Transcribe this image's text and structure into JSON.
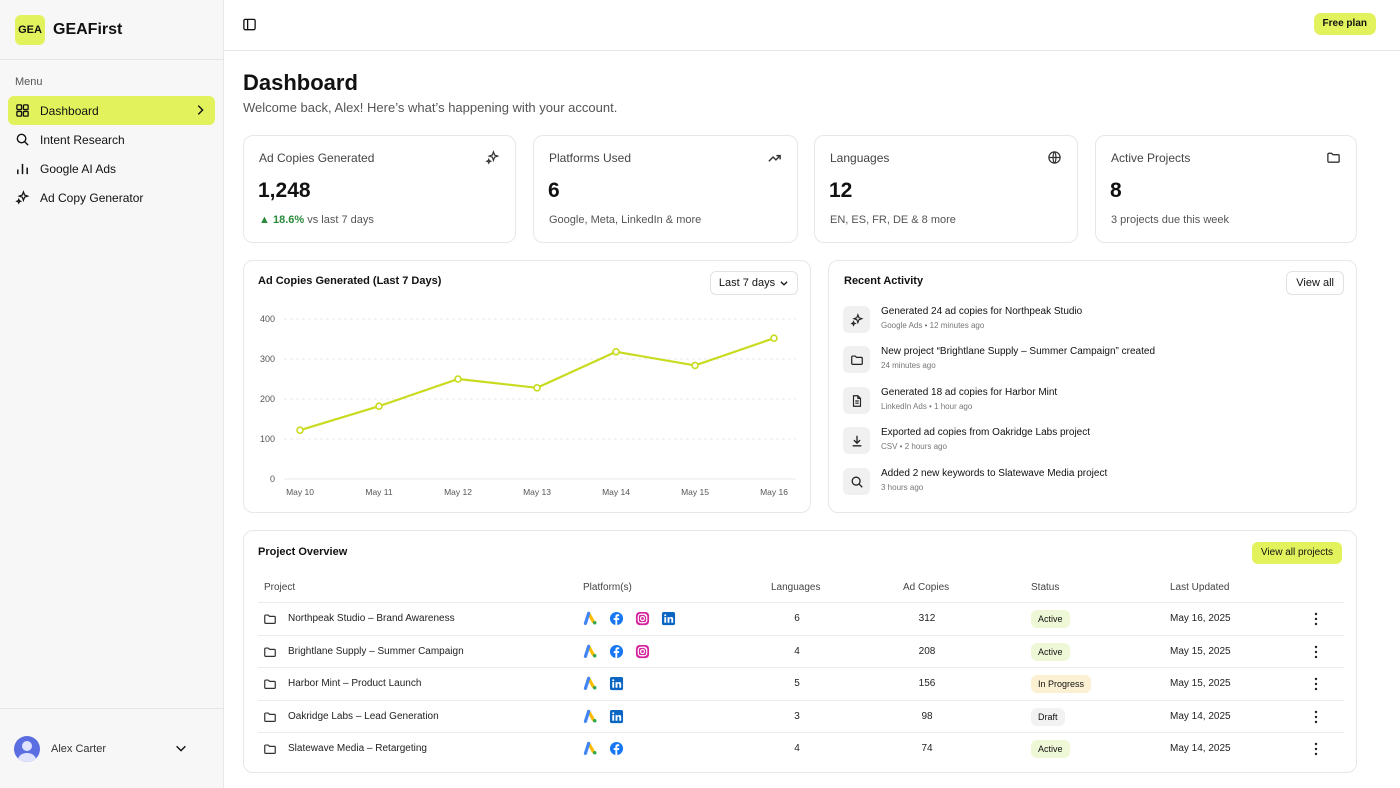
{
  "brand": {
    "logo": "GEA",
    "name": "GEAFirst"
  },
  "sidebar": {
    "menu_label": "Menu",
    "items": [
      {
        "label": "Dashboard",
        "icon": "grid-icon",
        "active": true
      },
      {
        "label": "Intent Research",
        "icon": "search-icon"
      },
      {
        "label": "Google AI Ads",
        "icon": "bar-chart-icon"
      },
      {
        "label": "Ad Copy Generator",
        "icon": "sparkles-icon"
      }
    ]
  },
  "user": {
    "name": "Alex Carter"
  },
  "topbar": {
    "plan": "Free plan"
  },
  "header": {
    "title": "Dashboard",
    "subtitle": "Welcome back, Alex! Here’s what’s happening with your account."
  },
  "stats": [
    {
      "label": "Ad Copies Generated",
      "value": "1,248",
      "trend": "18.6%",
      "note": "vs last 7 days",
      "icon": "sparkles-icon"
    },
    {
      "label": "Platforms Used",
      "value": "6",
      "note": "Google, Meta, LinkedIn & more",
      "icon": "trending-up-icon"
    },
    {
      "label": "Languages",
      "value": "12",
      "note": "EN, ES, FR, DE & 8 more",
      "icon": "globe-icon"
    },
    {
      "label": "Active Projects",
      "value": "8",
      "note": "3 projects due this week",
      "icon": "folder-icon"
    }
  ],
  "chart_panel": {
    "title": "Ad Copies Generated (Last 7 Days)",
    "range": "Last 7 days"
  },
  "chart_data": {
    "type": "line",
    "title": "Ad Copies Generated (Last 7 Days)",
    "categories": [
      "May 10",
      "May 11",
      "May 12",
      "May 13",
      "May 14",
      "May 15",
      "May 16"
    ],
    "values": [
      122,
      182,
      250,
      228,
      318,
      284,
      352
    ],
    "ylim": [
      0,
      400
    ],
    "yticks": [
      0,
      100,
      200,
      300,
      400
    ],
    "grid": true,
    "color": "#c8db1e"
  },
  "activity": {
    "title": "Recent Activity",
    "view_all": "View all",
    "items": [
      {
        "text": "Generated 24 ad copies for Northpeak Studio",
        "source": "Google Ads",
        "time": "12 minutes ago",
        "icon": "sparkles-icon"
      },
      {
        "text": "New project “Brightlane Supply – Summer Campaign” created",
        "source": "",
        "time": "24 minutes ago",
        "icon": "folder-icon"
      },
      {
        "text": "Generated 18 ad copies for Harbor Mint",
        "source": "LinkedIn Ads",
        "time": "1 hour ago",
        "icon": "document-icon"
      },
      {
        "text": "Exported ad copies from Oakridge Labs project",
        "source": "CSV",
        "time": "2 hours ago",
        "icon": "download-icon"
      },
      {
        "text": "Added 2 new keywords to Slatewave Media project",
        "source": "",
        "time": "3 hours ago",
        "icon": "search-icon"
      }
    ]
  },
  "projects": {
    "title": "Project Overview",
    "view_all": "View all projects",
    "columns": [
      "Project",
      "Platform(s)",
      "Languages",
      "Ad Copies",
      "Status",
      "Last Updated"
    ],
    "rows": [
      {
        "name": "Northpeak Studio – Brand Awareness",
        "platforms": [
          "google-ads",
          "facebook",
          "instagram",
          "linkedin"
        ],
        "languages": "6",
        "copies": "312",
        "status": "Active",
        "updated": "May 16, 2025"
      },
      {
        "name": "Brightlane Supply – Summer Campaign",
        "platforms": [
          "google-ads",
          "facebook",
          "instagram"
        ],
        "languages": "4",
        "copies": "208",
        "status": "Active",
        "updated": "May 15, 2025"
      },
      {
        "name": "Harbor Mint – Product Launch",
        "platforms": [
          "google-ads",
          "linkedin"
        ],
        "languages": "5",
        "copies": "156",
        "status": "In Progress",
        "updated": "May 15, 2025"
      },
      {
        "name": "Oakridge Labs – Lead Generation",
        "platforms": [
          "google-ads",
          "linkedin"
        ],
        "languages": "3",
        "copies": "98",
        "status": "Draft",
        "updated": "May 14, 2025"
      },
      {
        "name": "Slatewave Media – Retargeting",
        "platforms": [
          "google-ads",
          "facebook"
        ],
        "languages": "4",
        "copies": "74",
        "status": "Active",
        "updated": "May 14, 2025"
      }
    ]
  },
  "colors": {
    "accent": "#e2f25d",
    "line": "#c8db1e",
    "up": "#2a8a3a"
  }
}
